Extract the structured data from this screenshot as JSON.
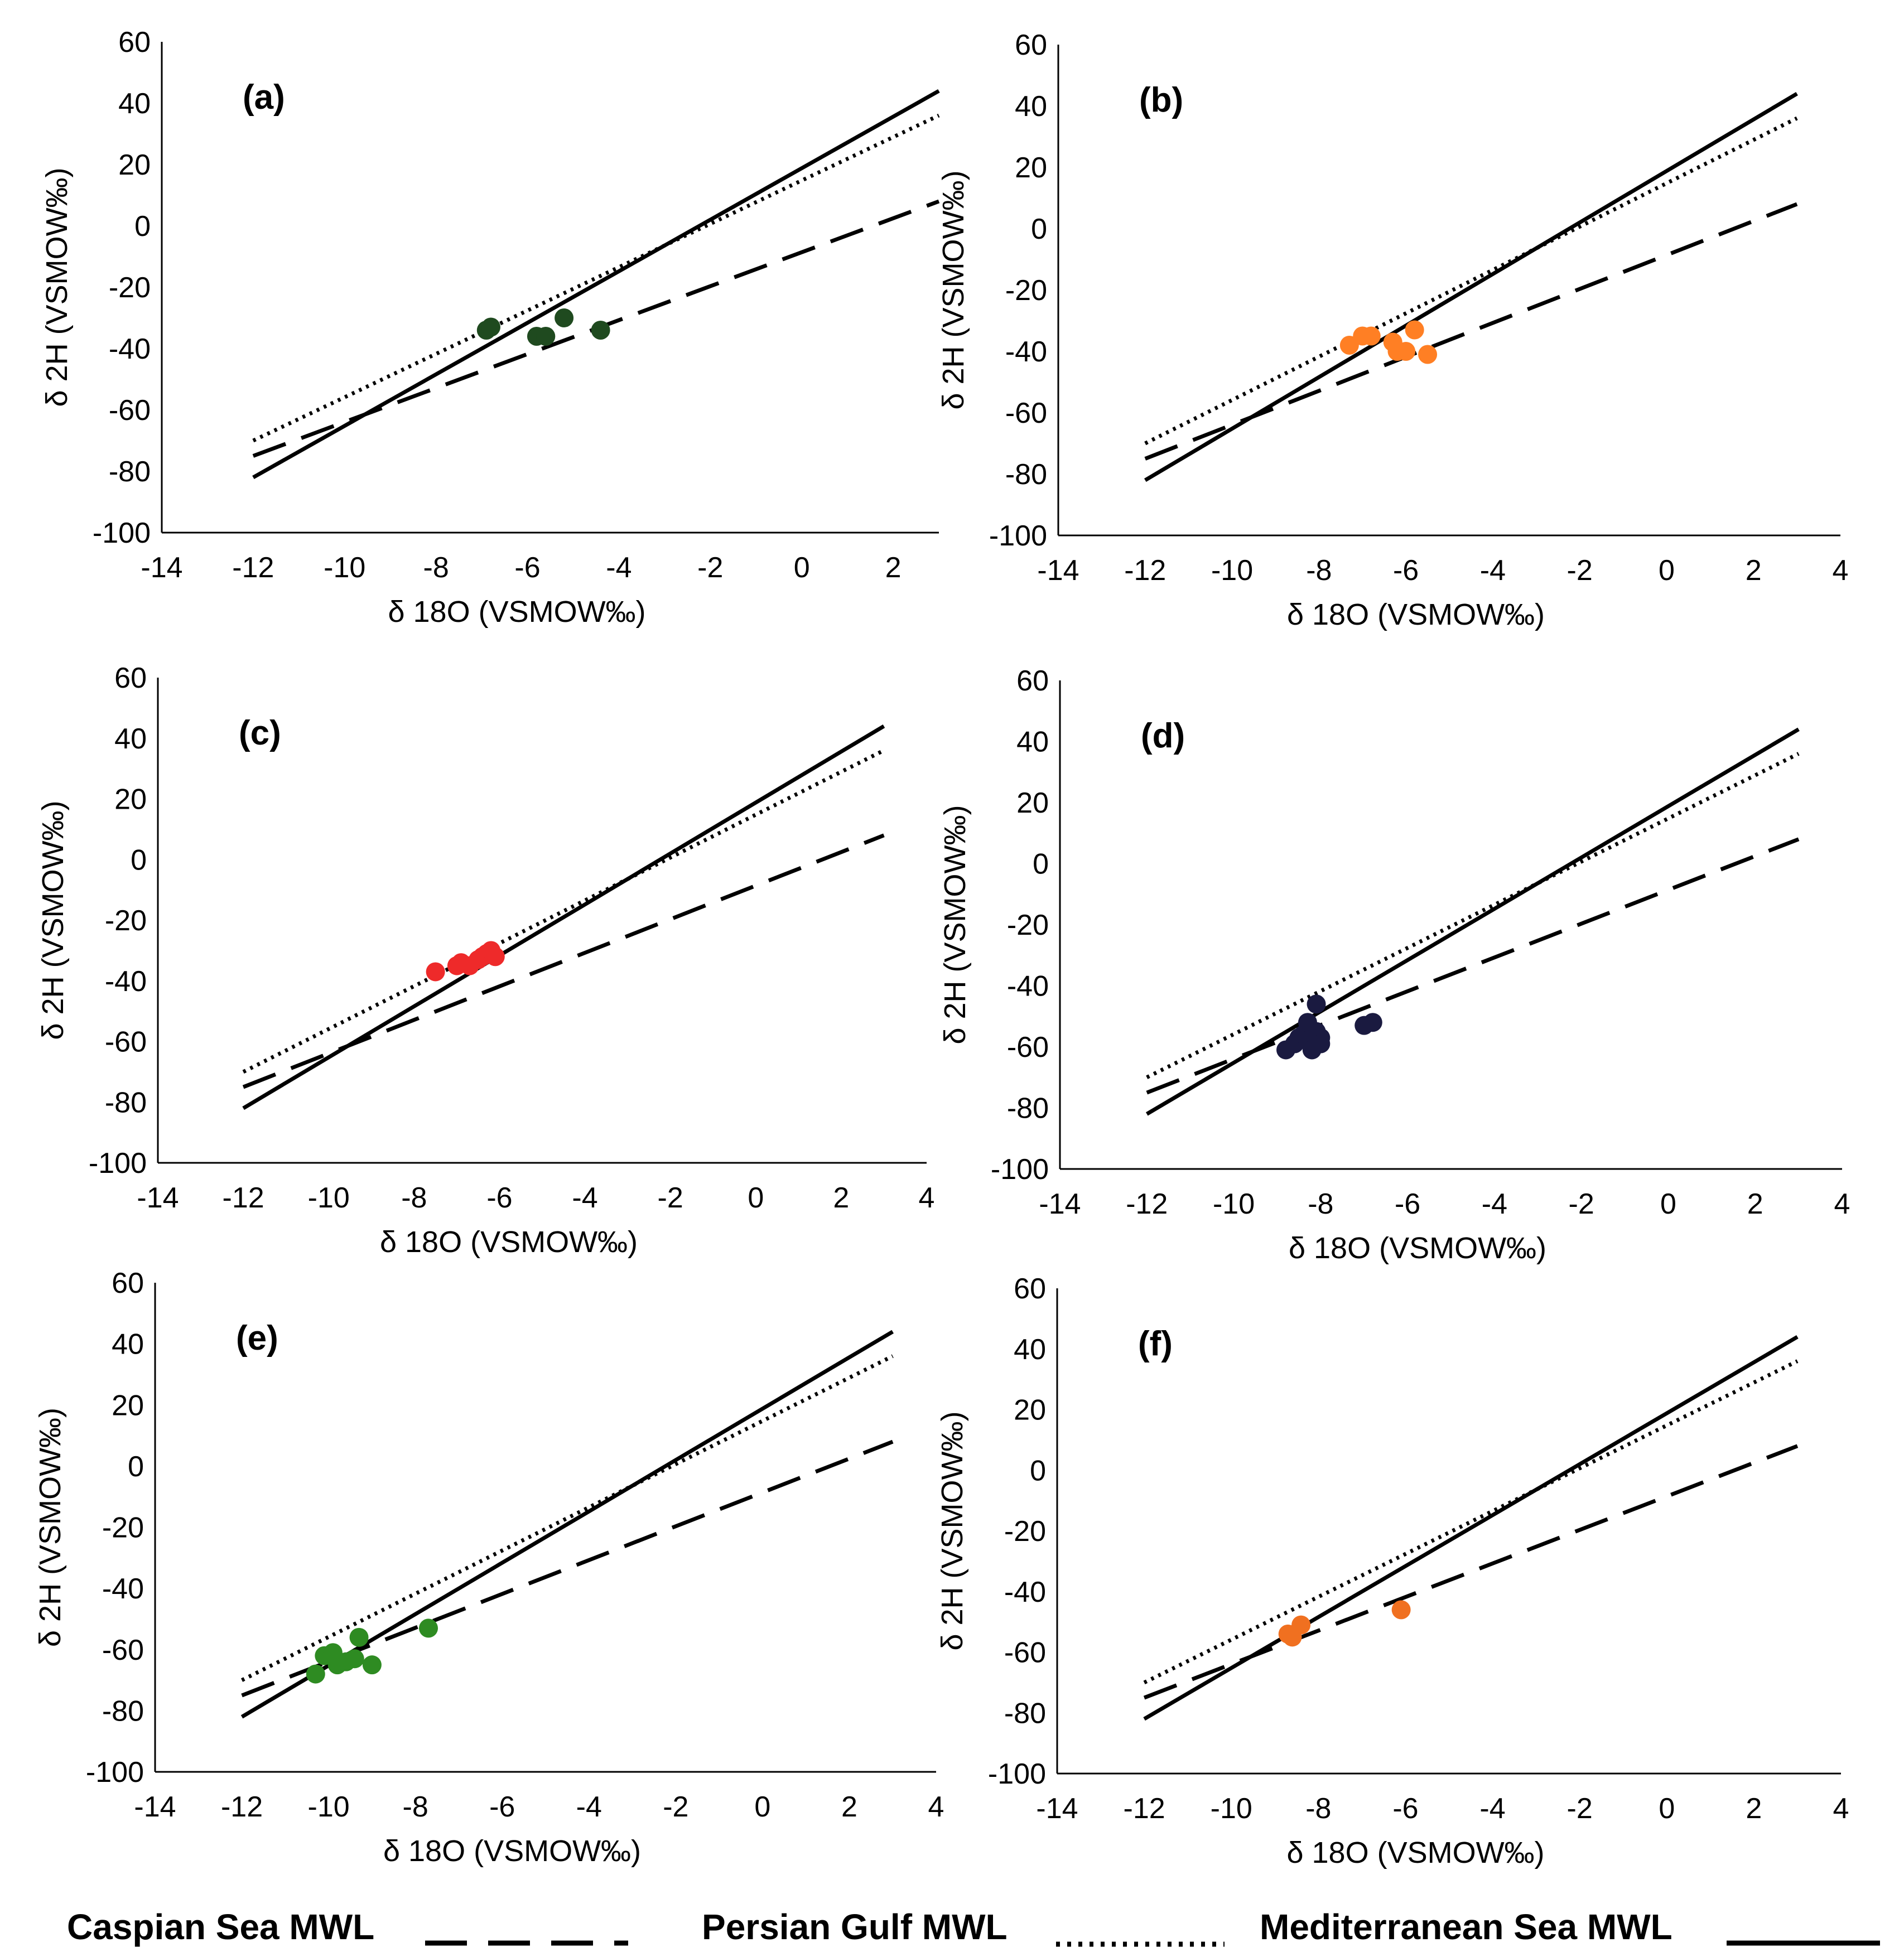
{
  "chart_data": [
    {
      "panel": "(a)",
      "type": "scatter",
      "xlabel": "δ 18O (VSMOW‰)",
      "ylabel": "δ 2H (VSMOW‰)",
      "xlim": [
        -14,
        3
      ],
      "ylim": [
        -100,
        60
      ],
      "xticks": [
        -14,
        -12,
        -10,
        -8,
        -6,
        -4,
        -2,
        0,
        2
      ],
      "yticks": [
        -100,
        -80,
        -60,
        -40,
        -20,
        0,
        20,
        40,
        60
      ],
      "point_color": "#1f4a1f",
      "points": [
        [
          -6.9,
          -34
        ],
        [
          -6.8,
          -33
        ],
        [
          -5.8,
          -36
        ],
        [
          -5.6,
          -36
        ],
        [
          -5.2,
          -30
        ],
        [
          -4.4,
          -34
        ]
      ]
    },
    {
      "panel": "(b)",
      "type": "scatter",
      "xlabel": "δ 18O (VSMOW‰)",
      "ylabel": "δ 2H (VSMOW‰)",
      "xlim": [
        -14,
        4
      ],
      "ylim": [
        -100,
        60
      ],
      "xticks": [
        -14,
        -12,
        -10,
        -8,
        -6,
        -4,
        -2,
        0,
        2,
        4
      ],
      "yticks": [
        -100,
        -80,
        -60,
        -40,
        -20,
        0,
        20,
        40,
        60
      ],
      "point_color": "#ff7f24",
      "points": [
        [
          -7.3,
          -38
        ],
        [
          -7.0,
          -35
        ],
        [
          -6.8,
          -35
        ],
        [
          -6.3,
          -37
        ],
        [
          -6.2,
          -40
        ],
        [
          -6.0,
          -40
        ],
        [
          -5.8,
          -33
        ],
        [
          -5.5,
          -41
        ]
      ]
    },
    {
      "panel": "(c)",
      "type": "scatter",
      "xlabel": "δ 18O (VSMOW‰)",
      "ylabel": "δ 2H (VSMOW‰)",
      "xlim": [
        -14,
        4
      ],
      "ylim": [
        -100,
        60
      ],
      "xticks": [
        -14,
        -12,
        -10,
        -8,
        -6,
        -4,
        -2,
        0,
        2,
        4
      ],
      "yticks": [
        -100,
        -80,
        -60,
        -40,
        -20,
        0,
        20,
        40,
        60
      ],
      "point_color": "#ee2a2a",
      "points": [
        [
          -7.5,
          -37
        ],
        [
          -7.0,
          -35
        ],
        [
          -6.9,
          -34
        ],
        [
          -6.7,
          -35
        ],
        [
          -6.5,
          -33
        ],
        [
          -6.4,
          -32
        ],
        [
          -6.3,
          -31
        ],
        [
          -6.2,
          -30
        ],
        [
          -6.1,
          -32
        ]
      ]
    },
    {
      "panel": "(d)",
      "type": "scatter",
      "xlabel": "δ 18O (VSMOW‰)",
      "ylabel": "δ 2H (VSMOW‰)",
      "xlim": [
        -14,
        4
      ],
      "ylim": [
        -100,
        60
      ],
      "xticks": [
        -14,
        -12,
        -10,
        -8,
        -6,
        -4,
        -2,
        0,
        2,
        4
      ],
      "yticks": [
        -100,
        -80,
        -60,
        -40,
        -20,
        0,
        20,
        40,
        60
      ],
      "point_color": "#1a1a40",
      "points": [
        [
          -8.8,
          -61
        ],
        [
          -8.6,
          -59
        ],
        [
          -8.5,
          -57
        ],
        [
          -8.4,
          -56
        ],
        [
          -8.3,
          -52
        ],
        [
          -8.3,
          -58
        ],
        [
          -8.2,
          -61
        ],
        [
          -8.1,
          -46
        ],
        [
          -8.1,
          -55
        ],
        [
          -8.0,
          -57
        ],
        [
          -8.0,
          -59
        ],
        [
          -7.0,
          -53
        ],
        [
          -6.8,
          -52
        ]
      ]
    },
    {
      "panel": "(e)",
      "type": "scatter",
      "xlabel": "δ 18O (VSMOW‰)",
      "ylabel": "δ 2H (VSMOW‰)",
      "xlim": [
        -14,
        4
      ],
      "ylim": [
        -100,
        60
      ],
      "xticks": [
        -14,
        -12,
        -10,
        -8,
        -6,
        -4,
        -2,
        0,
        2,
        4
      ],
      "yticks": [
        -100,
        -80,
        -60,
        -40,
        -20,
        0,
        20,
        40,
        60
      ],
      "point_color": "#2e8b22",
      "points": [
        [
          -10.3,
          -68
        ],
        [
          -10.1,
          -62
        ],
        [
          -9.9,
          -61
        ],
        [
          -9.8,
          -65
        ],
        [
          -9.6,
          -64
        ],
        [
          -9.4,
          -63
        ],
        [
          -9.3,
          -56
        ],
        [
          -9.0,
          -65
        ],
        [
          -7.7,
          -53
        ]
      ]
    },
    {
      "panel": "(f)",
      "type": "scatter",
      "xlabel": "δ 18O (VSMOW‰)",
      "ylabel": "δ 2H (VSMOW‰)",
      "xlim": [
        -14,
        4
      ],
      "ylim": [
        -100,
        60
      ],
      "xticks": [
        -14,
        -12,
        -10,
        -8,
        -6,
        -4,
        -2,
        0,
        2,
        4
      ],
      "yticks": [
        -100,
        -80,
        -60,
        -40,
        -20,
        0,
        20,
        40,
        60
      ],
      "point_color": "#f07020",
      "points": [
        [
          -8.7,
          -54
        ],
        [
          -8.6,
          -55
        ],
        [
          -8.4,
          -51
        ],
        [
          -6.1,
          -46
        ]
      ]
    }
  ],
  "lines": [
    {
      "name": "Caspian Sea MWL",
      "style": "dashed",
      "x": [
        -12,
        3
      ],
      "y": [
        -75,
        8
      ]
    },
    {
      "name": "Persian Gulf MWL",
      "style": "dotted",
      "x": [
        -12,
        3
      ],
      "y": [
        -70,
        36
      ]
    },
    {
      "name": "Mediterranean Sea MWL",
      "style": "solid",
      "x": [
        -12,
        3
      ],
      "y": [
        -82,
        44
      ]
    }
  ],
  "legend": {
    "caspian": "Caspian Sea MWL",
    "persian": "Persian Gulf MWL",
    "mediterranean": "Mediterranean Sea MWL"
  }
}
